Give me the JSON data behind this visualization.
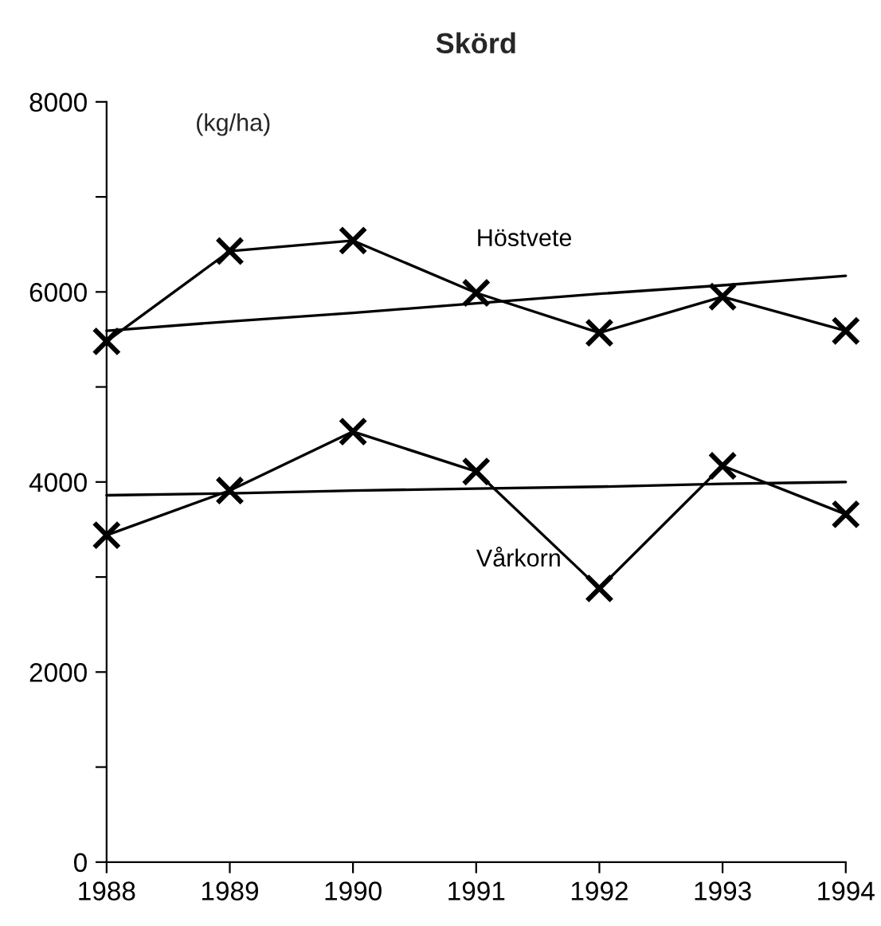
{
  "chart_data": {
    "type": "line",
    "title": "Skörd",
    "ylabel": "(kg/ha)",
    "x": [
      1988,
      1989,
      1990,
      1991,
      1992,
      1993,
      1994
    ],
    "series": [
      {
        "name": "Höstvete",
        "color": "#000000",
        "marker": "cross",
        "values": [
          5480,
          6430,
          6540,
          5990,
          5570,
          5950,
          5590
        ]
      },
      {
        "name": "Vårkorn",
        "color": "#000000",
        "marker": "cross",
        "values": [
          3440,
          3910,
          4530,
          4110,
          2880,
          4170,
          3660
        ]
      },
      {
        "color": "#000000",
        "marker": "none",
        "values": [
          5590,
          5690,
          5780,
          5880,
          5980,
          6070,
          6170
        ]
      },
      {
        "color": "#000000",
        "marker": "none",
        "values": [
          3860,
          3880,
          3910,
          3930,
          3950,
          3980,
          4000
        ]
      }
    ],
    "xlim": [
      1988,
      1994
    ],
    "xticks": [
      1988,
      1989,
      1990,
      1991,
      1992,
      1993,
      1994
    ],
    "ylim": [
      0,
      8000
    ],
    "yticks": [
      0,
      {
        "value": 1000,
        "label": null
      },
      2000,
      {
        "value": 3000,
        "label": null
      },
      4000,
      {
        "value": 5000,
        "label": null
      },
      6000,
      {
        "value": 7000,
        "label": null
      },
      8000
    ],
    "grid": false,
    "legend": false
  }
}
